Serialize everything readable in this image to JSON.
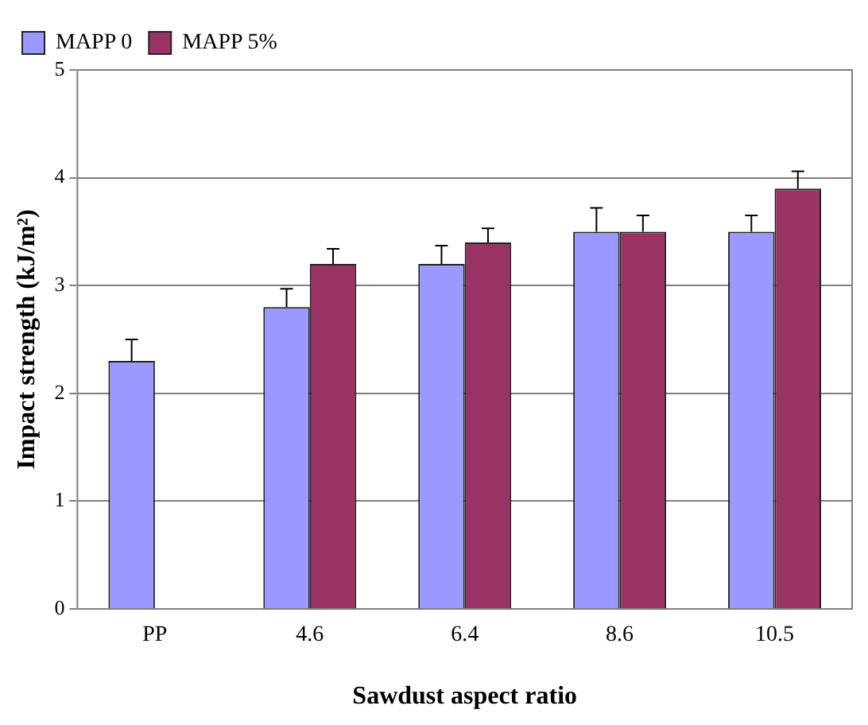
{
  "chart_data": {
    "type": "bar",
    "xlabel": "Sawdust aspect ratio",
    "ylabel": "Impact strength (kJ/m²)",
    "categories": [
      "PP",
      "4.6",
      "6.4",
      "8.6",
      "10.5"
    ],
    "series": [
      {
        "name": "MAPP 0",
        "color": "#9999ff",
        "values": [
          2.3,
          2.8,
          3.2,
          3.5,
          3.5
        ],
        "errors": [
          [
            2.3,
            2.5
          ],
          [
            2.8,
            2.97
          ],
          [
            3.2,
            3.37
          ],
          [
            3.5,
            3.72
          ],
          [
            3.5,
            3.65
          ]
        ]
      },
      {
        "name": "MAPP 5%",
        "color": "#993366",
        "values": [
          null,
          3.2,
          3.4,
          3.5,
          3.9
        ],
        "errors": [
          null,
          [
            3.2,
            3.34
          ],
          [
            3.4,
            3.53
          ],
          [
            3.5,
            3.65
          ],
          [
            3.9,
            4.06
          ]
        ]
      }
    ],
    "ylim": [
      0,
      5
    ],
    "yticks": [
      0,
      1,
      2,
      3,
      4,
      5
    ],
    "grid": "y",
    "legend": "top left"
  }
}
